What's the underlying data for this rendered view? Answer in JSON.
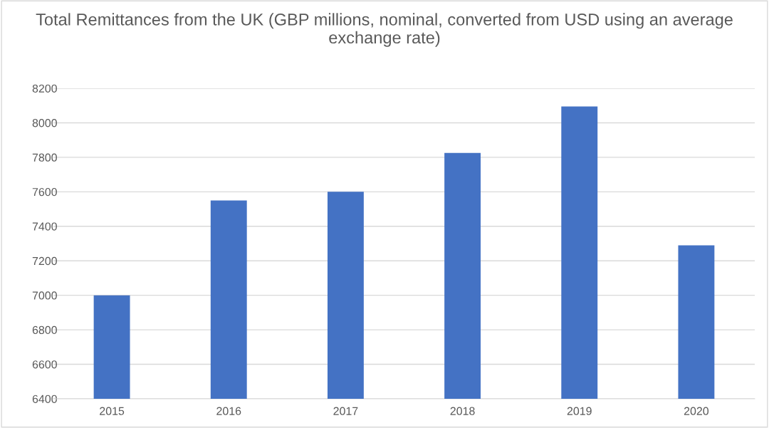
{
  "chart_data": {
    "type": "bar",
    "title": "Total Remittances from the UK (GBP millions, nominal, converted from USD using an average exchange rate)",
    "categories": [
      "2015",
      "2016",
      "2017",
      "2018",
      "2019",
      "2020"
    ],
    "values": [
      7000,
      7550,
      7600,
      7825,
      8095,
      7290
    ],
    "color": "#4472c4",
    "ylim": [
      6400,
      8200
    ],
    "yticks": [
      6400,
      6600,
      6800,
      7000,
      7200,
      7400,
      7600,
      7800,
      8000,
      8200
    ],
    "grid": "y",
    "legend": false
  }
}
